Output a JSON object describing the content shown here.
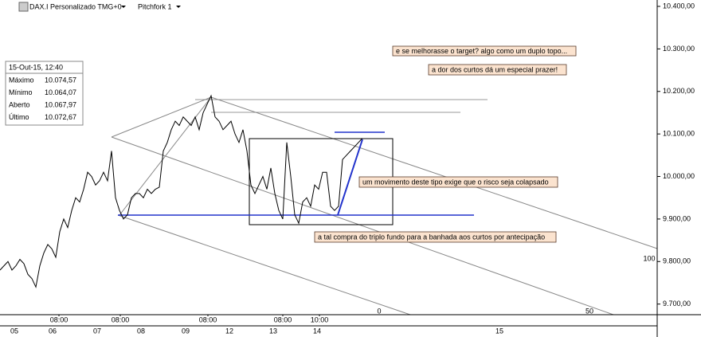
{
  "toolbar": {
    "symbol": "DAX.I Personalizado TMG+0",
    "tool": "Pitchfork 1"
  },
  "info_panel": {
    "date": "15-Out-15, 12:40",
    "rows": [
      [
        "Máximo",
        "10.074,57"
      ],
      [
        "Mínimo",
        "10.064,07"
      ],
      [
        "Aberto",
        "10.067,97"
      ],
      [
        "Último",
        "10.072,67"
      ]
    ]
  },
  "chart_data": {
    "type": "line",
    "x": [
      0,
      1,
      2,
      3,
      4,
      5,
      6,
      7,
      8,
      9,
      10,
      11,
      12,
      13,
      14,
      15,
      16,
      17,
      18,
      19,
      20,
      21,
      22,
      23,
      24,
      25,
      26,
      27,
      28,
      29,
      30,
      31,
      32,
      33,
      34,
      35,
      36,
      37,
      38,
      39,
      40,
      41,
      42,
      43,
      44,
      45,
      46,
      47,
      48,
      49,
      50,
      51,
      52,
      53,
      54,
      55,
      56,
      57,
      58,
      59,
      60,
      61,
      62,
      63,
      64,
      65,
      66,
      67,
      68,
      69,
      70,
      71,
      72,
      73,
      74,
      75,
      76,
      77,
      78,
      79,
      80,
      81,
      82,
      83,
      84,
      85,
      86,
      87,
      88,
      89,
      90,
      91
    ],
    "series": [
      {
        "color": "#000000",
        "values": [
          9780,
          9790,
          9800,
          9780,
          9790,
          9805,
          9795,
          9770,
          9760,
          9740,
          9790,
          9820,
          9840,
          9830,
          9810,
          9870,
          9900,
          9880,
          9920,
          9950,
          9940,
          9970,
          10010,
          10000,
          9980,
          9990,
          10010,
          9990,
          10060,
          9950,
          9920,
          9900,
          9910,
          9950,
          9960,
          9960,
          9950,
          9970,
          9960,
          9970,
          9975,
          10060,
          10080,
          10110,
          10130,
          10120,
          10140,
          10130,
          10120,
          10140,
          10110,
          10150,
          10170,
          10190,
          10140,
          10130,
          10110,
          10120,
          10130,
          10100,
          10080,
          10110,
          10060,
          9980,
          9960,
          9980,
          10000,
          9970,
          10020,
          9960,
          9920,
          9900,
          10080,
          10000,
          9910,
          9890,
          9940,
          9950,
          9930,
          9980,
          9970,
          10010,
          10010,
          9930,
          9920,
          9930,
          10040,
          10050,
          10060,
          10070,
          10080,
          10090
        ]
      }
    ],
    "xlim": [
      0,
      165
    ],
    "ylim": [
      9675,
      10415
    ],
    "yticks": [
      {
        "value": 9700,
        "label": "9.700,00"
      },
      {
        "value": 9800,
        "label": "9.800,00"
      },
      {
        "value": 9900,
        "label": "9.900,00"
      },
      {
        "value": 10000,
        "label": "10.000,00"
      },
      {
        "value": 10100,
        "label": "10.100,00"
      },
      {
        "value": 10200,
        "label": "10.200,00"
      },
      {
        "value": 10300,
        "label": "10.300,00"
      },
      {
        "value": 10400,
        "label": "10.400,00"
      }
    ],
    "xticks": [
      {
        "value": 14.8,
        "label": "08:00"
      },
      {
        "value": 30.2,
        "label": "08:00"
      },
      {
        "value": 52.2,
        "label": "08:00"
      },
      {
        "value": 71,
        "label": "08:00"
      },
      {
        "value": 80.2,
        "label": "10:00"
      }
    ],
    "day_ticks": [
      {
        "value": 3.6,
        "label": "05"
      },
      {
        "value": 13.2,
        "label": "06"
      },
      {
        "value": 24.4,
        "label": "07"
      },
      {
        "value": 35.4,
        "label": "08"
      },
      {
        "value": 46.6,
        "label": "09"
      },
      {
        "value": 57.6,
        "label": "12"
      },
      {
        "value": 68.6,
        "label": "13"
      },
      {
        "value": 79.6,
        "label": "14"
      },
      {
        "value": 125.4,
        "label": "15"
      }
    ],
    "annotations": [
      "e se melhorasse o target? algo como um duplo topo...",
      "a dor dos curtos dá um especial prazer!",
      "um movimento deste tipo exige que o risco seja colapsado",
      "a tal compra do triplo fundo para a banhada aos curtos por antecipação"
    ],
    "fib_labels": [
      "0",
      "50",
      "100"
    ]
  }
}
